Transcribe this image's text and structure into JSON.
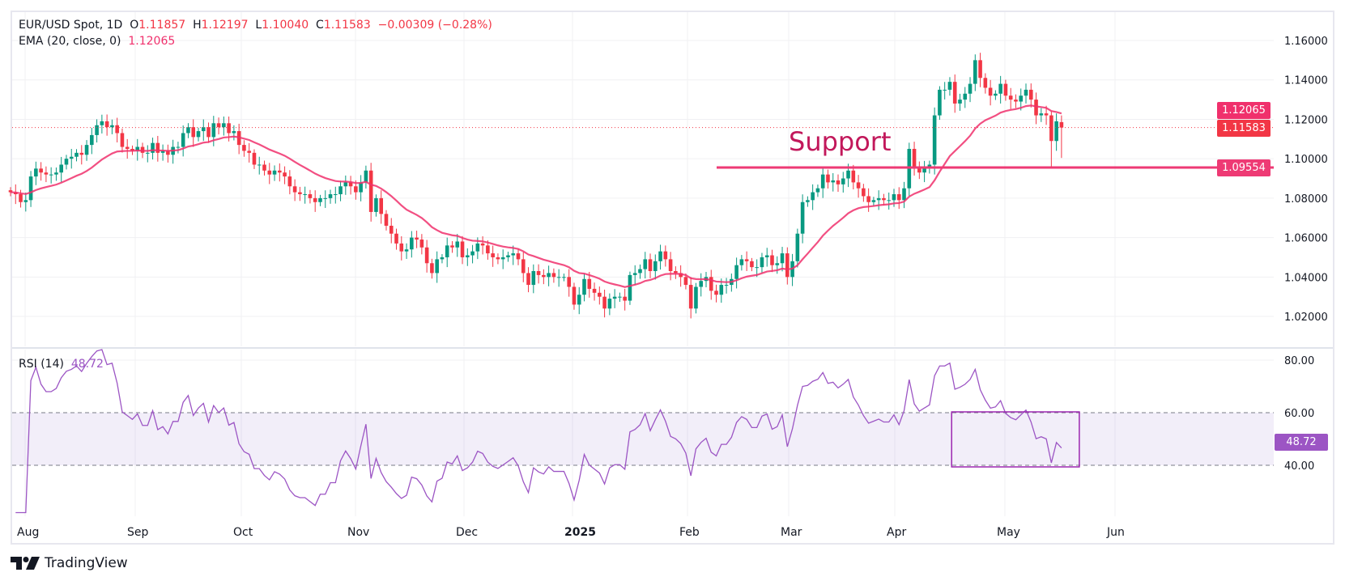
{
  "header": {
    "symbol": "EUR/USD Spot, 1D",
    "o_label": "O",
    "o": "1.11857",
    "h_label": "H",
    "h": "1.12197",
    "l_label": "L",
    "l": "1.10040",
    "c_label": "C",
    "c": "1.11583",
    "change": "−0.00309 (−0.28%)",
    "ema_label": "EMA (20, close, 0)",
    "ema_value": "1.12065"
  },
  "rsi_header": {
    "label": "RSI (14)",
    "value": "48.72"
  },
  "price_labels": {
    "ema": "1.12065",
    "close": "1.11583",
    "support": "1.09554"
  },
  "rsi_label": "48.72",
  "branding": "TradingView",
  "colors": {
    "up": "#089981",
    "down": "#f23645",
    "ema": "#f0306c",
    "support": "#ee3a74",
    "support_text": "#c2185b",
    "rsi": "#9c55c4",
    "highlight_box": "#9c27b0"
  },
  "chart_data": [
    {
      "type": "candlestick",
      "title": "EUR/USD Spot, 1D",
      "y_ticks": [
        "1.16000",
        "1.14000",
        "1.12000",
        "1.10000",
        "1.08000",
        "1.06000",
        "1.04000",
        "1.02000"
      ],
      "ylim": [
        1.01,
        1.1665
      ],
      "x_ticks": [
        "Aug",
        "Sep",
        "Oct",
        "Nov",
        "Dec",
        "2025",
        "Feb",
        "Mar",
        "Apr",
        "May",
        "Jun"
      ],
      "closes": [
        1.083,
        1.082,
        1.078,
        1.079,
        1.091,
        1.095,
        1.093,
        1.092,
        1.092,
        1.093,
        1.097,
        1.1,
        1.101,
        1.103,
        1.102,
        1.107,
        1.112,
        1.117,
        1.119,
        1.116,
        1.117,
        1.113,
        1.106,
        1.105,
        1.104,
        1.106,
        1.103,
        1.103,
        1.108,
        1.103,
        1.104,
        1.102,
        1.106,
        1.106,
        1.113,
        1.116,
        1.111,
        1.114,
        1.116,
        1.111,
        1.118,
        1.116,
        1.118,
        1.113,
        1.114,
        1.107,
        1.104,
        1.103,
        1.097,
        1.097,
        1.094,
        1.092,
        1.094,
        1.093,
        1.091,
        1.086,
        1.083,
        1.082,
        1.082,
        1.08,
        1.078,
        1.08,
        1.08,
        1.082,
        1.082,
        1.086,
        1.088,
        1.086,
        1.083,
        1.088,
        1.094,
        1.073,
        1.08,
        1.072,
        1.066,
        1.062,
        1.057,
        1.053,
        1.054,
        1.06,
        1.059,
        1.055,
        1.047,
        1.042,
        1.049,
        1.05,
        1.056,
        1.055,
        1.058,
        1.05,
        1.051,
        1.053,
        1.057,
        1.056,
        1.052,
        1.05,
        1.049,
        1.05,
        1.051,
        1.052,
        1.049,
        1.042,
        1.036,
        1.043,
        1.041,
        1.04,
        1.042,
        1.04,
        1.04,
        1.04,
        1.035,
        1.026,
        1.031,
        1.039,
        1.034,
        1.032,
        1.03,
        1.024,
        1.029,
        1.03,
        1.03,
        1.028,
        1.041,
        1.042,
        1.044,
        1.049,
        1.043,
        1.048,
        1.053,
        1.049,
        1.043,
        1.042,
        1.04,
        1.036,
        1.024,
        1.035,
        1.038,
        1.04,
        1.033,
        1.031,
        1.036,
        1.036,
        1.039,
        1.046,
        1.049,
        1.048,
        1.045,
        1.045,
        1.05,
        1.051,
        1.046,
        1.047,
        1.052,
        1.04,
        1.048,
        1.062,
        1.078,
        1.079,
        1.083,
        1.085,
        1.092,
        1.088,
        1.089,
        1.087,
        1.09,
        1.094,
        1.088,
        1.085,
        1.081,
        1.078,
        1.079,
        1.08,
        1.079,
        1.079,
        1.082,
        1.079,
        1.085,
        1.105,
        1.096,
        1.093,
        1.095,
        1.097,
        1.122,
        1.135,
        1.135,
        1.139,
        1.128,
        1.13,
        1.133,
        1.138,
        1.15,
        1.141,
        1.136,
        1.132,
        1.133,
        1.138,
        1.132,
        1.13,
        1.129,
        1.132,
        1.135,
        1.13,
        1.122,
        1.123,
        1.122,
        1.109,
        1.119,
        1.11583
      ],
      "last_open": 1.11857,
      "ema_period": 20,
      "support_level": 1.09554,
      "annotation": "Support"
    },
    {
      "type": "line",
      "title": "RSI (14)",
      "y_ticks": [
        "80.00",
        "60.00",
        "40.00"
      ],
      "ylim": [
        20,
        85
      ],
      "band": [
        40,
        60
      ],
      "current": 48.72,
      "highlight_range": {
        "from_index": 186,
        "to_index": 207,
        "rsi_from": 40,
        "rsi_to": 60
      }
    }
  ]
}
